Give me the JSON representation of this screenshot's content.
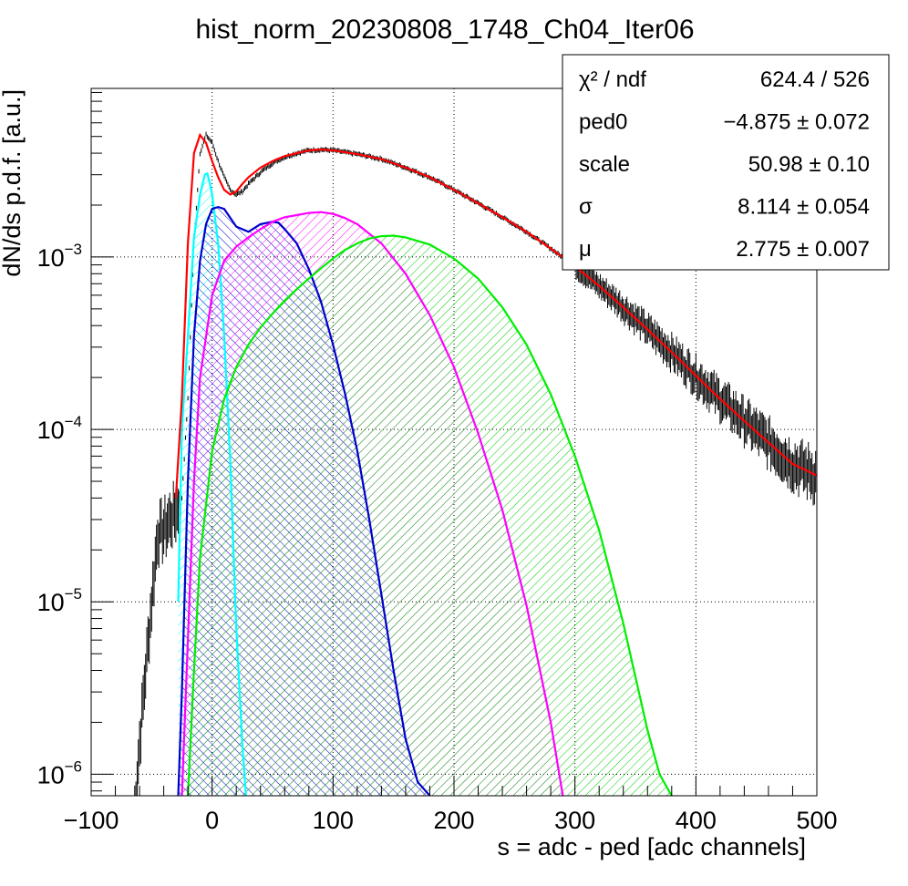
{
  "chart_data": {
    "type": "histogram-with-fit",
    "title": "hist_norm_20230808_1748_Ch04_Iter06",
    "xlabel": "s = adc - ped [adc channels]",
    "ylabel": "dN/ds p.d.f. [a.u.]",
    "x_scale": "linear",
    "y_scale": "log",
    "xlim": [
      -100,
      500
    ],
    "ylim": [
      7.5e-07,
      0.0095
    ],
    "grid": true,
    "x_ticks": [
      -100,
      0,
      100,
      200,
      300,
      400,
      500
    ],
    "x_tick_labels": [
      "−100",
      "0",
      "100",
      "200",
      "300",
      "400",
      "500"
    ],
    "y_ticks": [
      {
        "value": 1e-06,
        "mantissa": "10",
        "exp": "−6"
      },
      {
        "value": 1e-05,
        "mantissa": "10",
        "exp": "−5"
      },
      {
        "value": 0.0001,
        "mantissa": "10",
        "exp": "−4"
      },
      {
        "value": 0.001,
        "mantissa": "10",
        "exp": "−3"
      }
    ],
    "stats_box": [
      {
        "name": "χ² / ndf",
        "value": "624.4 / 526"
      },
      {
        "name": "ped0",
        "value": "−4.875 ± 0.072"
      },
      {
        "name": "scale",
        "value": "50.98 ± 0.10"
      },
      {
        "name": "σ",
        "value": "8.114 ± 0.054"
      },
      {
        "name": "μ",
        "value": "2.775 ± 0.007"
      }
    ],
    "series": [
      {
        "role": "data",
        "style": "black error bars",
        "x": [
          -65,
          -60,
          -55,
          -50,
          -45,
          -40,
          -35,
          -30,
          -25,
          -20,
          -15,
          -10,
          -5,
          0,
          5,
          10,
          15,
          20,
          25,
          30,
          40,
          50,
          60,
          70,
          80,
          90,
          100,
          120,
          140,
          160,
          180,
          200,
          220,
          240,
          260,
          280,
          300,
          320,
          340,
          360,
          380,
          400,
          420,
          440,
          460,
          480,
          500
        ],
        "y": [
          5e-07,
          1.5e-06,
          4e-06,
          1e-05,
          2.5e-05,
          2.6e-05,
          3e-05,
          3.3e-05,
          4e-05,
          0.00015,
          0.0012,
          0.004,
          0.0051,
          0.0046,
          0.0036,
          0.0029,
          0.00245,
          0.0023,
          0.0024,
          0.00265,
          0.0031,
          0.0035,
          0.0038,
          0.004,
          0.00415,
          0.0042,
          0.00415,
          0.00395,
          0.0037,
          0.0033,
          0.0029,
          0.00245,
          0.00205,
          0.0017,
          0.0014,
          0.00112,
          0.00088,
          0.00068,
          0.00051,
          0.00038,
          0.00028,
          0.000205,
          0.00015,
          0.000112,
          8.4e-05,
          6.3e-05,
          5.4e-05
        ]
      },
      {
        "role": "total fit",
        "color": "#ff0000",
        "x": [
          -30,
          -25,
          -20,
          -15,
          -10,
          -5,
          0,
          5,
          10,
          15,
          20,
          25,
          30,
          40,
          50,
          60,
          70,
          80,
          90,
          100,
          120,
          140,
          160,
          180,
          200,
          220,
          240,
          260,
          280,
          300,
          320,
          340,
          360,
          380,
          400,
          420,
          440,
          460,
          480,
          500
        ],
        "y": [
          4e-05,
          0.00015,
          0.0012,
          0.004,
          0.0051,
          0.0046,
          0.0036,
          0.0029,
          0.00245,
          0.0023,
          0.0024,
          0.00265,
          0.0029,
          0.0033,
          0.0036,
          0.00385,
          0.004,
          0.00415,
          0.0042,
          0.00415,
          0.00395,
          0.0037,
          0.0033,
          0.0029,
          0.00245,
          0.00205,
          0.0017,
          0.0014,
          0.00112,
          0.00088,
          0.00068,
          0.00051,
          0.00038,
          0.00028,
          0.000205,
          0.00015,
          0.000112,
          8.4e-05,
          6.3e-05,
          5.4e-05
        ]
      },
      {
        "role": "component",
        "color": "#00ffff",
        "hatch": "cyan",
        "x": [
          -28,
          -25,
          -20,
          -15,
          -10,
          -6,
          -4,
          -2,
          0,
          5,
          10,
          15,
          20,
          25,
          28
        ],
        "y": [
          1e-05,
          0.0001,
          0.00035,
          0.0013,
          0.0023,
          0.003,
          0.00305,
          0.0027,
          0.0023,
          0.0012,
          0.00035,
          6.5e-05,
          7e-06,
          1.5e-06,
          7.5e-07
        ]
      },
      {
        "role": "component",
        "color": "#0000cc",
        "hatch": "blue",
        "x": [
          -28,
          -25,
          -20,
          -15,
          -10,
          -5,
          0,
          5,
          10,
          20,
          30,
          40,
          50,
          55,
          60,
          70,
          80,
          90,
          100,
          110,
          120,
          130,
          140,
          150,
          160,
          170,
          180
        ],
        "y": [
          7.5e-07,
          3e-06,
          5e-05,
          0.00035,
          0.00095,
          0.00155,
          0.0019,
          0.00195,
          0.0019,
          0.0015,
          0.0014,
          0.00155,
          0.0016,
          0.00158,
          0.00145,
          0.0012,
          0.00085,
          0.00055,
          0.00031,
          0.00016,
          7.5e-05,
          3e-05,
          1.1e-05,
          4e-06,
          1.6e-06,
          9e-07,
          7.5e-07
        ]
      },
      {
        "role": "component",
        "color": "#ff00ff",
        "hatch": "magenta",
        "x": [
          -25,
          -20,
          -15,
          -10,
          0,
          10,
          20,
          30,
          40,
          50,
          60,
          70,
          80,
          90,
          100,
          110,
          120,
          140,
          160,
          180,
          200,
          220,
          240,
          260,
          280,
          290
        ],
        "y": [
          7.5e-07,
          6e-06,
          5e-05,
          0.0002,
          0.0006,
          0.00095,
          0.00115,
          0.0013,
          0.00145,
          0.0016,
          0.0017,
          0.00175,
          0.0018,
          0.00182,
          0.00178,
          0.00168,
          0.00155,
          0.0012,
          0.0008,
          0.00046,
          0.00023,
          9.5e-05,
          3.4e-05,
          9.5e-06,
          2e-06,
          7.5e-07
        ]
      },
      {
        "role": "component",
        "color": "#00ee00",
        "hatch": "green",
        "x": [
          -20,
          -15,
          -10,
          0,
          10,
          20,
          30,
          40,
          50,
          60,
          70,
          80,
          90,
          100,
          110,
          120,
          130,
          140,
          150,
          160,
          180,
          200,
          220,
          240,
          260,
          280,
          300,
          320,
          340,
          360,
          370,
          380
        ],
        "y": [
          7.5e-07,
          4e-06,
          1.8e-05,
          7.5e-05,
          0.00015,
          0.00023,
          0.00031,
          0.00039,
          0.00047,
          0.00056,
          0.00065,
          0.00075,
          0.00086,
          0.00098,
          0.0011,
          0.0012,
          0.00128,
          0.00132,
          0.00133,
          0.0013,
          0.00118,
          0.00098,
          0.00075,
          0.00051,
          0.00031,
          0.00016,
          7e-05,
          2.6e-05,
          7.5e-06,
          1.8e-06,
          1e-06,
          7.5e-07
        ]
      }
    ]
  }
}
